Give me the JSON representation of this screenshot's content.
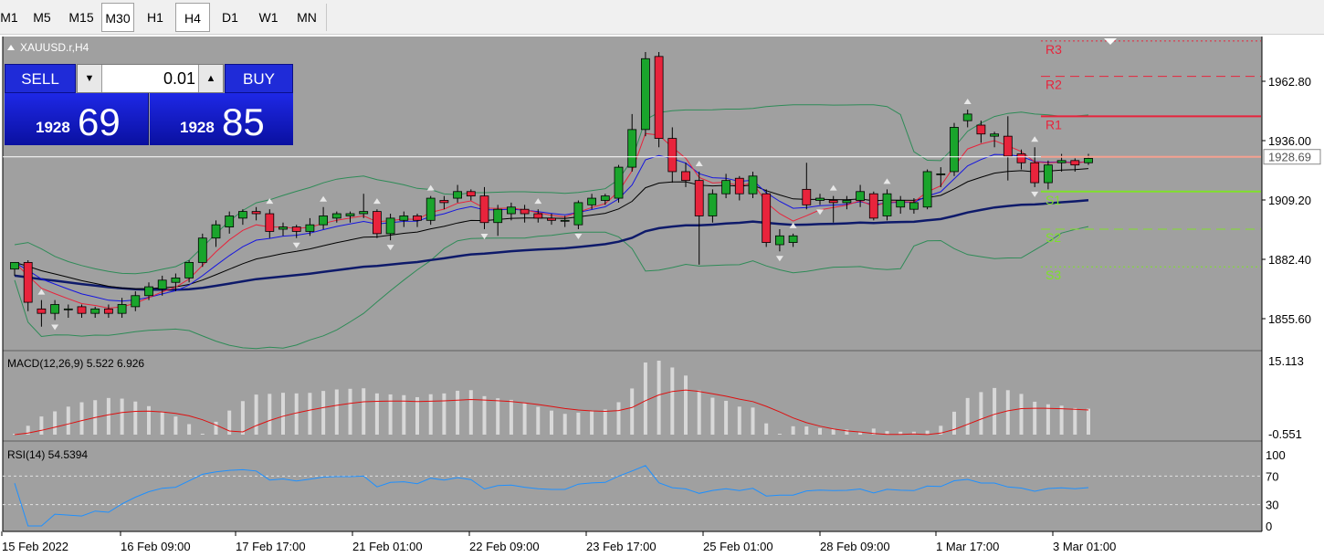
{
  "timeframes": [
    {
      "label": "M1",
      "active": false
    },
    {
      "label": "M5",
      "active": false
    },
    {
      "label": "M15",
      "active": false
    },
    {
      "label": "M30",
      "active": true
    },
    {
      "label": "H1",
      "active": false
    },
    {
      "label": "H4",
      "active": true
    },
    {
      "label": "D1",
      "active": false
    },
    {
      "label": "W1",
      "active": false
    },
    {
      "label": "MN",
      "active": false
    }
  ],
  "chart": {
    "symbol_label": "XAUUSD.r,H4",
    "current_price": "1928.69",
    "price_axis": [
      "1962.80",
      "1936.00",
      "1909.20",
      "1882.40",
      "1855.60"
    ],
    "pivots": [
      {
        "label": "R3",
        "value": 1981,
        "color": "#e8243c",
        "style": "dotted"
      },
      {
        "label": "R2",
        "value": 1965,
        "color": "#e8243c",
        "style": "dashed"
      },
      {
        "label": "R1",
        "value": 1947,
        "color": "#e8243c",
        "style": "solid"
      },
      {
        "label": "S1",
        "value": 1913,
        "color": "#7fe02a",
        "style": "solid"
      },
      {
        "label": "S2",
        "value": 1896,
        "color": "#7fe02a",
        "style": "dashed"
      },
      {
        "label": "S3",
        "value": 1879,
        "color": "#7fe02a",
        "style": "dotted"
      }
    ],
    "colors": {
      "background": "#a0a0a0",
      "bull": "#1aa52c",
      "bear": "#e8243c",
      "ma_fast": "#e8243c",
      "ma_mid": "#1515e0",
      "ma_slow": "#000000",
      "ma_long": "#0e1a6a",
      "bands": "#2e8b57",
      "macd_hist": "#d8d8d8",
      "macd_signal": "#dd1010",
      "rsi": "#1e90ff"
    }
  },
  "macd": {
    "label": "MACD(12,26,9) 5.522 6.926",
    "axis_top": "15.113",
    "axis_bottom": "-0.551"
  },
  "rsi": {
    "label": "RSI(14) 54.5394",
    "levels": [
      "100",
      "70",
      "30",
      "0"
    ]
  },
  "time_axis": [
    "15 Feb 2022",
    "16 Feb 09:00",
    "17 Feb 17:00",
    "21 Feb 01:00",
    "22 Feb 09:00",
    "23 Feb 17:00",
    "25 Feb 01:00",
    "28 Feb 09:00",
    "1 Mar 17:00",
    "3 Mar 01:00"
  ],
  "trade_panel": {
    "sell_label": "SELL",
    "buy_label": "BUY",
    "lot": "0.01",
    "bid_main": "1928",
    "bid_big": "69",
    "ask_main": "1928",
    "ask_big": "85"
  }
}
